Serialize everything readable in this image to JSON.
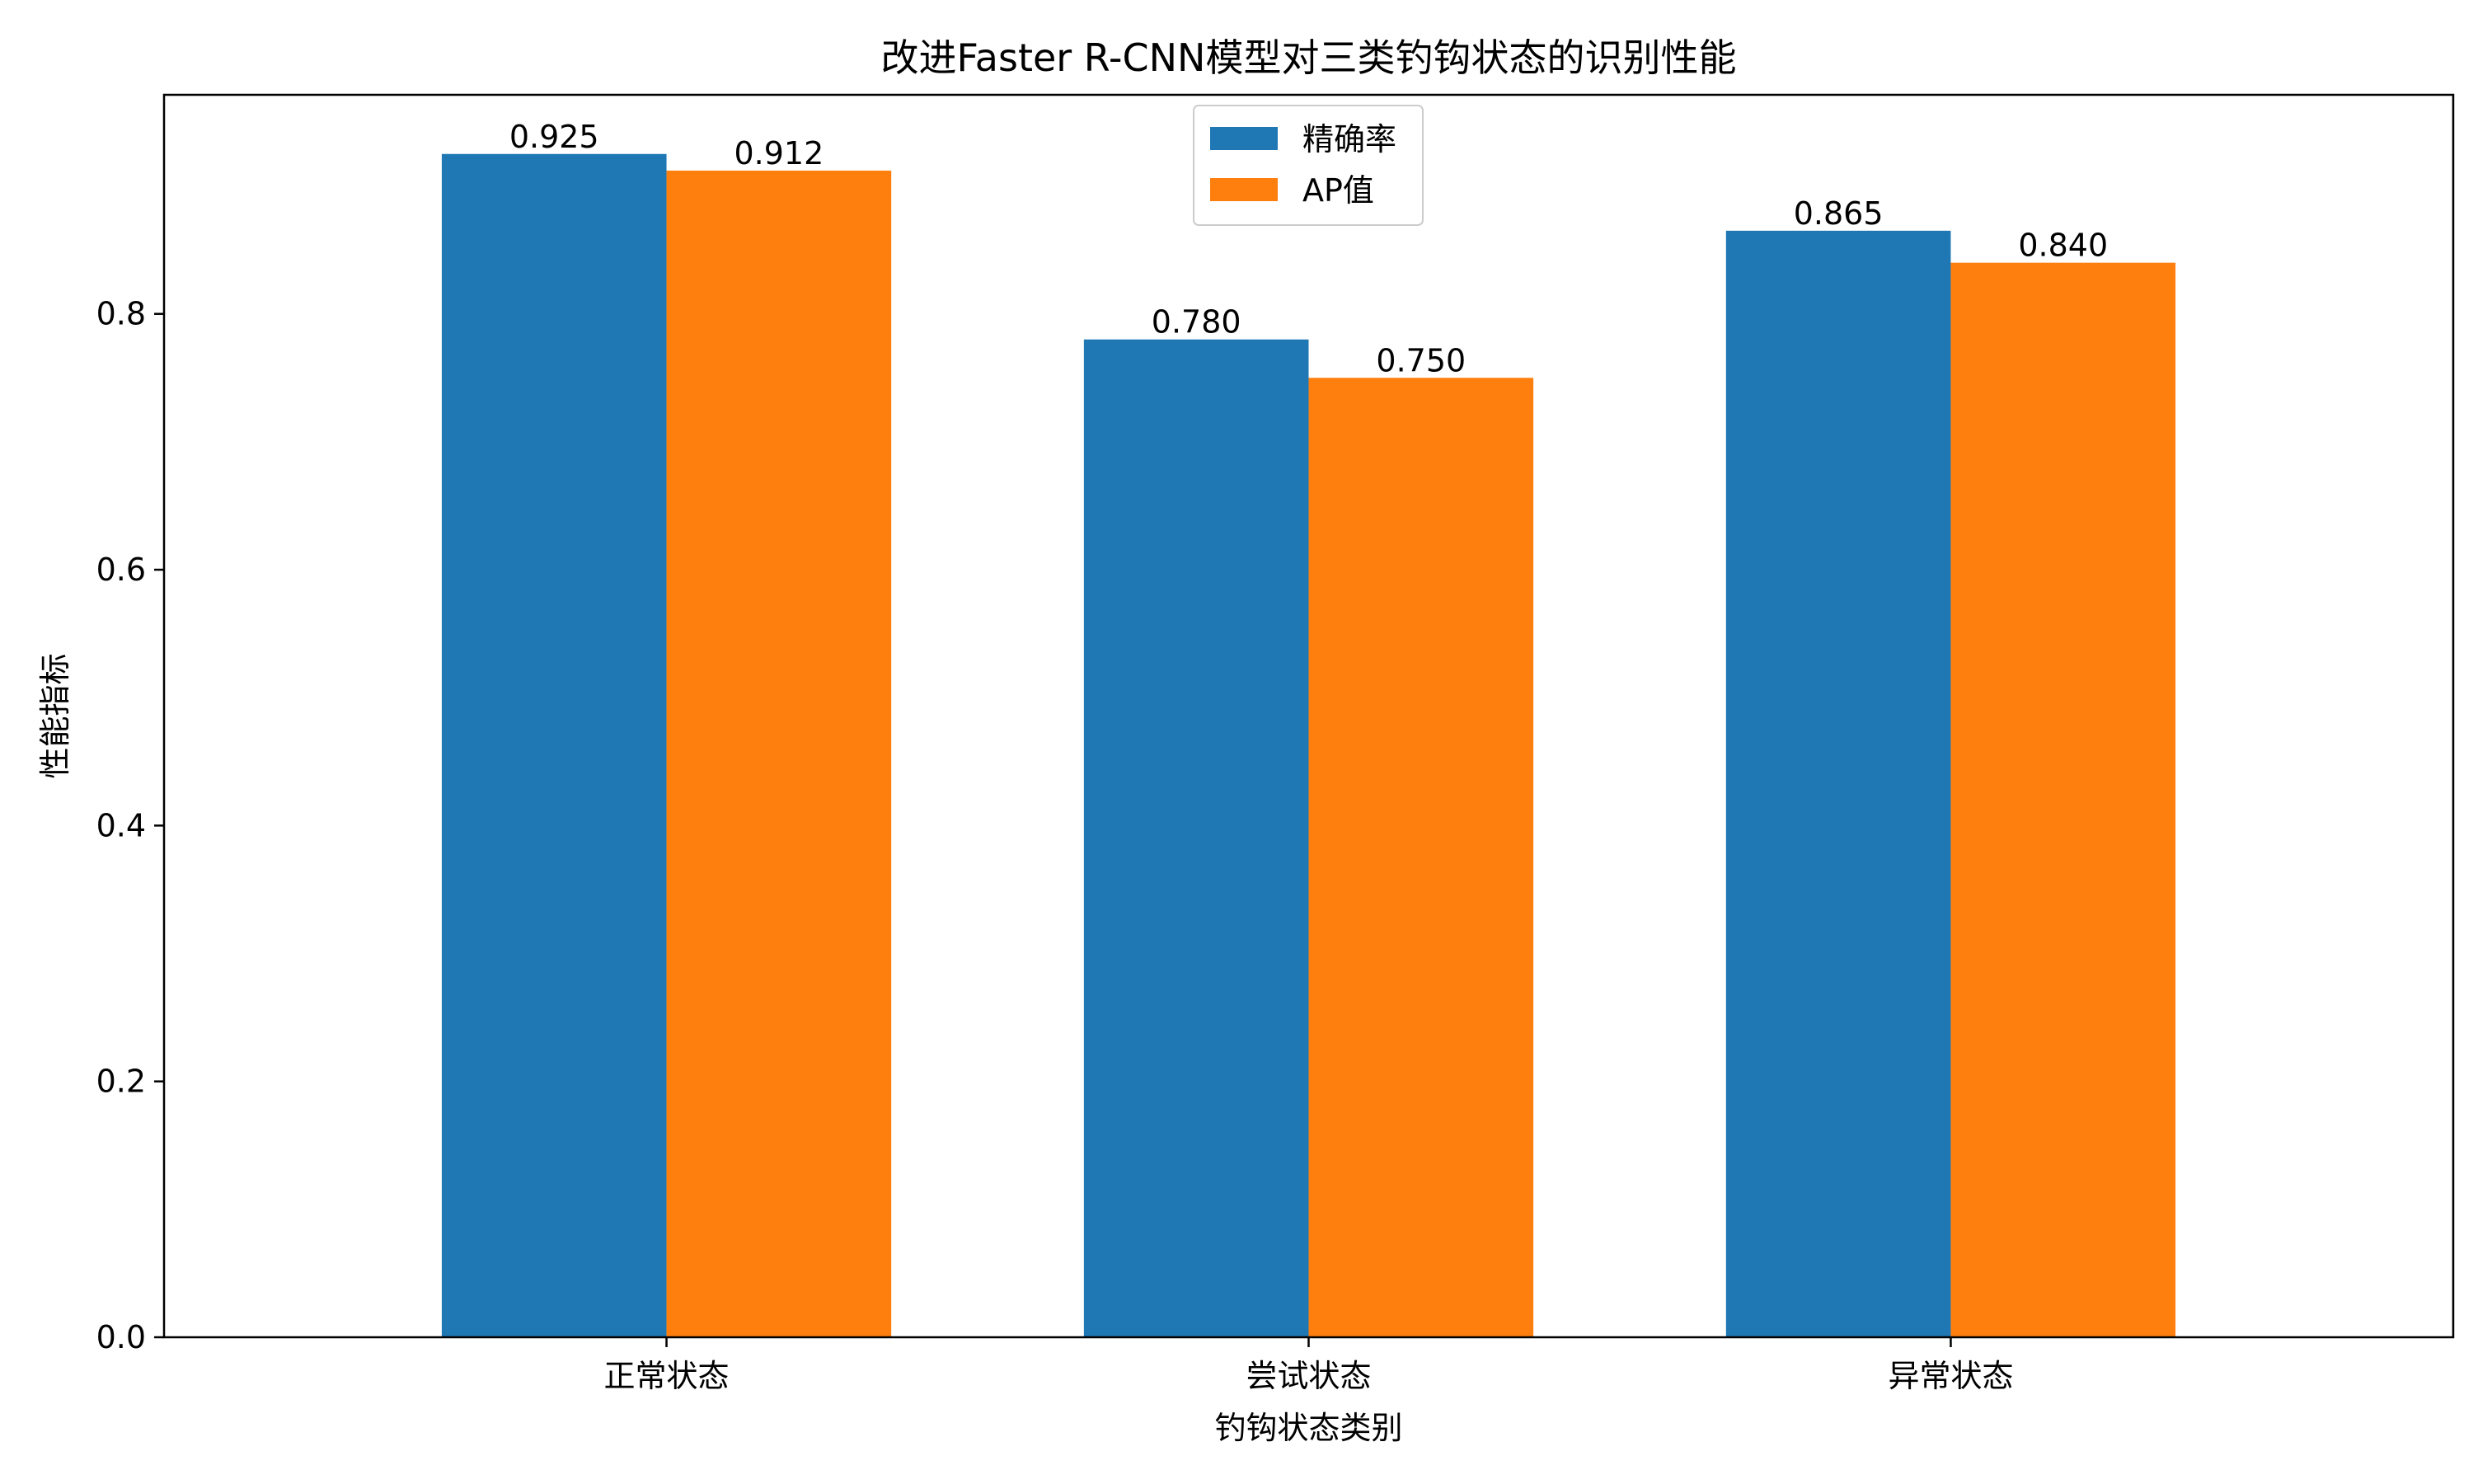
{
  "chart_data": {
    "type": "bar",
    "title": "改进Faster R-CNN模型对三类钓钩状态的识别性能",
    "xlabel": "钓钩状态类别",
    "ylabel": "性能指标",
    "categories": [
      "正常状态",
      "尝试状态",
      "异常状态"
    ],
    "series": [
      {
        "name": "精确率",
        "values": [
          0.925,
          0.78,
          0.865
        ],
        "labels": [
          "0.925",
          "0.780",
          "0.865"
        ],
        "color": "#1f77b4"
      },
      {
        "name": "AP值",
        "values": [
          0.912,
          0.75,
          0.84
        ],
        "labels": [
          "0.912",
          "0.750",
          "0.840"
        ],
        "color": "#ff7f0e"
      }
    ],
    "ylim": [
      0,
      0.97125
    ],
    "yticks": [
      {
        "value": 0.0,
        "label": "0.0"
      },
      {
        "value": 0.2,
        "label": "0.2"
      },
      {
        "value": 0.4,
        "label": "0.4"
      },
      {
        "value": 0.6,
        "label": "0.6"
      },
      {
        "value": 0.8,
        "label": "0.8"
      }
    ],
    "grid": false,
    "legend_position": "upper-center"
  }
}
